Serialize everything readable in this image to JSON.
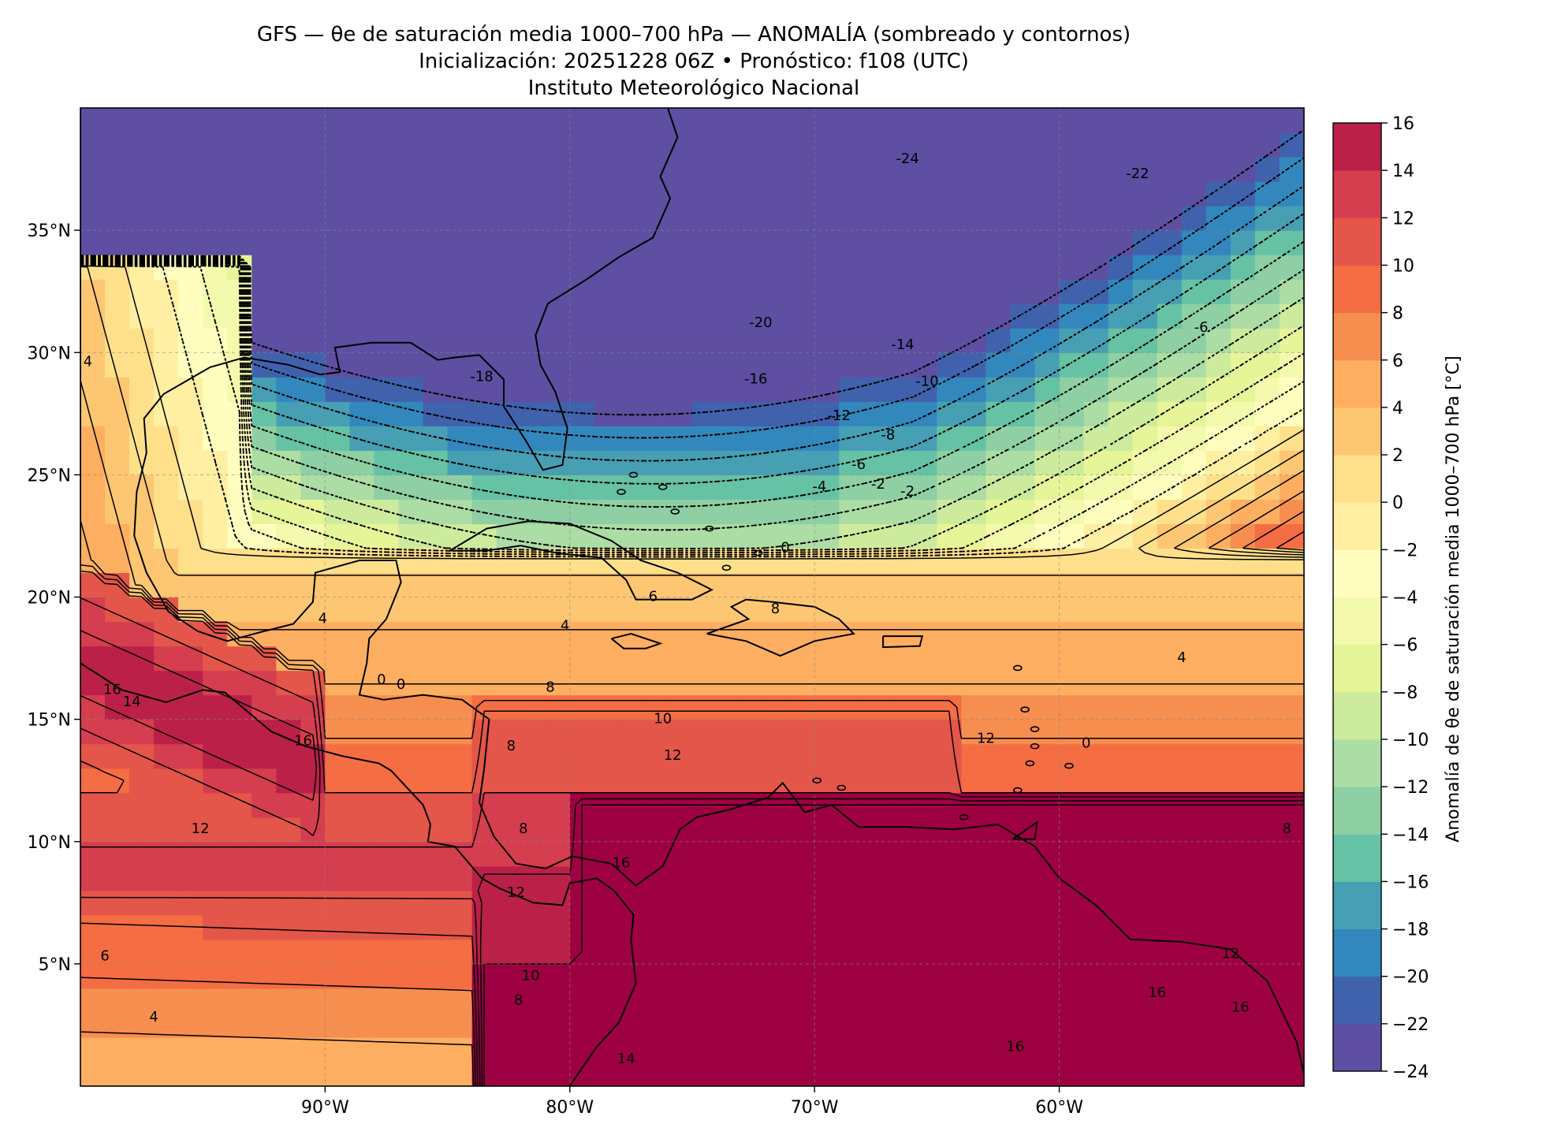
{
  "title": {
    "line1": "GFS — θe de saturación media 1000–700 hPa — ANOMALÍA (sombreado y contornos)",
    "line2": "Inicialización: 20251228 06Z   •   Pronóstico: f108 (UTC)",
    "line3": "Instituto Meteorológico Nacional"
  },
  "map": {
    "lon_range": [
      -100,
      -50
    ],
    "lat_range": [
      0,
      40
    ],
    "lon_ticks": [
      "90°W",
      "80°W",
      "70°W",
      "60°W"
    ],
    "lat_ticks": [
      "35°N",
      "30°N",
      "25°N",
      "20°N",
      "15°N",
      "10°N",
      "5°N"
    ],
    "grid": true
  },
  "colorbar": {
    "label": "Anomalía de θe de saturación media 1000–700 hPa [°C]",
    "ticks": [
      "16",
      "14",
      "12",
      "10",
      "8",
      "6",
      "4",
      "2",
      "0",
      "−2",
      "−4",
      "−6",
      "−8",
      "−10",
      "−12",
      "−14",
      "−16",
      "−18",
      "−20",
      "−22",
      "−24"
    ],
    "range": [
      -24,
      16
    ],
    "colors": [
      "#5e4fa2",
      "#4062ad",
      "#3288bd",
      "#479fb3",
      "#66c2a5",
      "#8ecfa4",
      "#abdda4",
      "#cdeb9d",
      "#e6f598",
      "#f4faad",
      "#fffebe",
      "#feefa3",
      "#fee08b",
      "#fdc672",
      "#fdae61",
      "#f68e4f",
      "#f46d43",
      "#e35649",
      "#d53e4f",
      "#bb2049",
      "#9e0142"
    ]
  },
  "contour_labels": [
    {
      "text": "-24",
      "lon": -66.2,
      "lat": 37.9
    },
    {
      "text": "-22",
      "lon": -56.8,
      "lat": 37.3
    },
    {
      "text": "-20",
      "lon": -72.2,
      "lat": 31.2
    },
    {
      "text": "-18",
      "lon": -83.6,
      "lat": 29.0
    },
    {
      "text": "-16",
      "lon": -72.4,
      "lat": 28.9
    },
    {
      "text": "-14",
      "lon": -66.4,
      "lat": 30.3
    },
    {
      "text": "-12",
      "lon": -69.0,
      "lat": 27.4
    },
    {
      "text": "-10",
      "lon": -65.4,
      "lat": 28.8
    },
    {
      "text": "-8",
      "lon": -67.0,
      "lat": 26.6
    },
    {
      "text": "-6",
      "lon": -68.2,
      "lat": 25.4
    },
    {
      "text": "-6",
      "lon": -54.2,
      "lat": 31.0
    },
    {
      "text": "-4",
      "lon": -69.8,
      "lat": 24.5
    },
    {
      "text": "-2",
      "lon": -67.4,
      "lat": 24.6
    },
    {
      "text": "-2",
      "lon": -66.2,
      "lat": 24.3
    },
    {
      "text": "0",
      "lon": -71.2,
      "lat": 22.0
    },
    {
      "text": "6",
      "lon": -76.6,
      "lat": 20.0
    },
    {
      "text": "4",
      "lon": -80.2,
      "lat": 18.8
    },
    {
      "text": "4",
      "lon": -90.1,
      "lat": 19.1
    },
    {
      "text": "8",
      "lon": -80.8,
      "lat": 16.3
    },
    {
      "text": "8",
      "lon": -71.6,
      "lat": 19.5
    },
    {
      "text": "8",
      "lon": -82.4,
      "lat": 13.9
    },
    {
      "text": "8",
      "lon": -81.9,
      "lat": 10.5
    },
    {
      "text": "10",
      "lon": -76.2,
      "lat": 15.0
    },
    {
      "text": "12",
      "lon": -75.8,
      "lat": 13.5
    },
    {
      "text": "12",
      "lon": -63.0,
      "lat": 14.2
    },
    {
      "text": "16",
      "lon": -90.9,
      "lat": 14.1
    },
    {
      "text": "16",
      "lon": -77.9,
      "lat": 9.1
    },
    {
      "text": "16",
      "lon": -61.8,
      "lat": 1.6
    },
    {
      "text": "16",
      "lon": -52.6,
      "lat": 3.2
    },
    {
      "text": "16",
      "lon": -56.0,
      "lat": 3.8
    },
    {
      "text": "16",
      "lon": -98.7,
      "lat": 16.2
    },
    {
      "text": "14",
      "lon": -97.9,
      "lat": 15.7
    },
    {
      "text": "14",
      "lon": -77.7,
      "lat": 1.1
    },
    {
      "text": "12",
      "lon": -95.1,
      "lat": 10.5
    },
    {
      "text": "12",
      "lon": -82.2,
      "lat": 7.9
    },
    {
      "text": "12",
      "lon": -53.0,
      "lat": 5.4
    },
    {
      "text": "6",
      "lon": -99.0,
      "lat": 5.3
    },
    {
      "text": "10",
      "lon": -81.6,
      "lat": 4.5
    },
    {
      "text": "8",
      "lon": -82.1,
      "lat": 3.5
    },
    {
      "text": "4",
      "lon": -97.0,
      "lat": 2.8
    },
    {
      "text": "4",
      "lon": -55.0,
      "lat": 17.5
    },
    {
      "text": "8",
      "lon": -50.7,
      "lat": 10.5
    },
    {
      "text": "0",
      "lon": -87.7,
      "lat": 16.6
    },
    {
      "text": "0",
      "lon": -86.9,
      "lat": 16.4
    },
    {
      "text": "0",
      "lon": -58.9,
      "lat": 14.0
    },
    {
      "text": "4",
      "lon": -99.7,
      "lat": 29.6
    }
  ]
}
